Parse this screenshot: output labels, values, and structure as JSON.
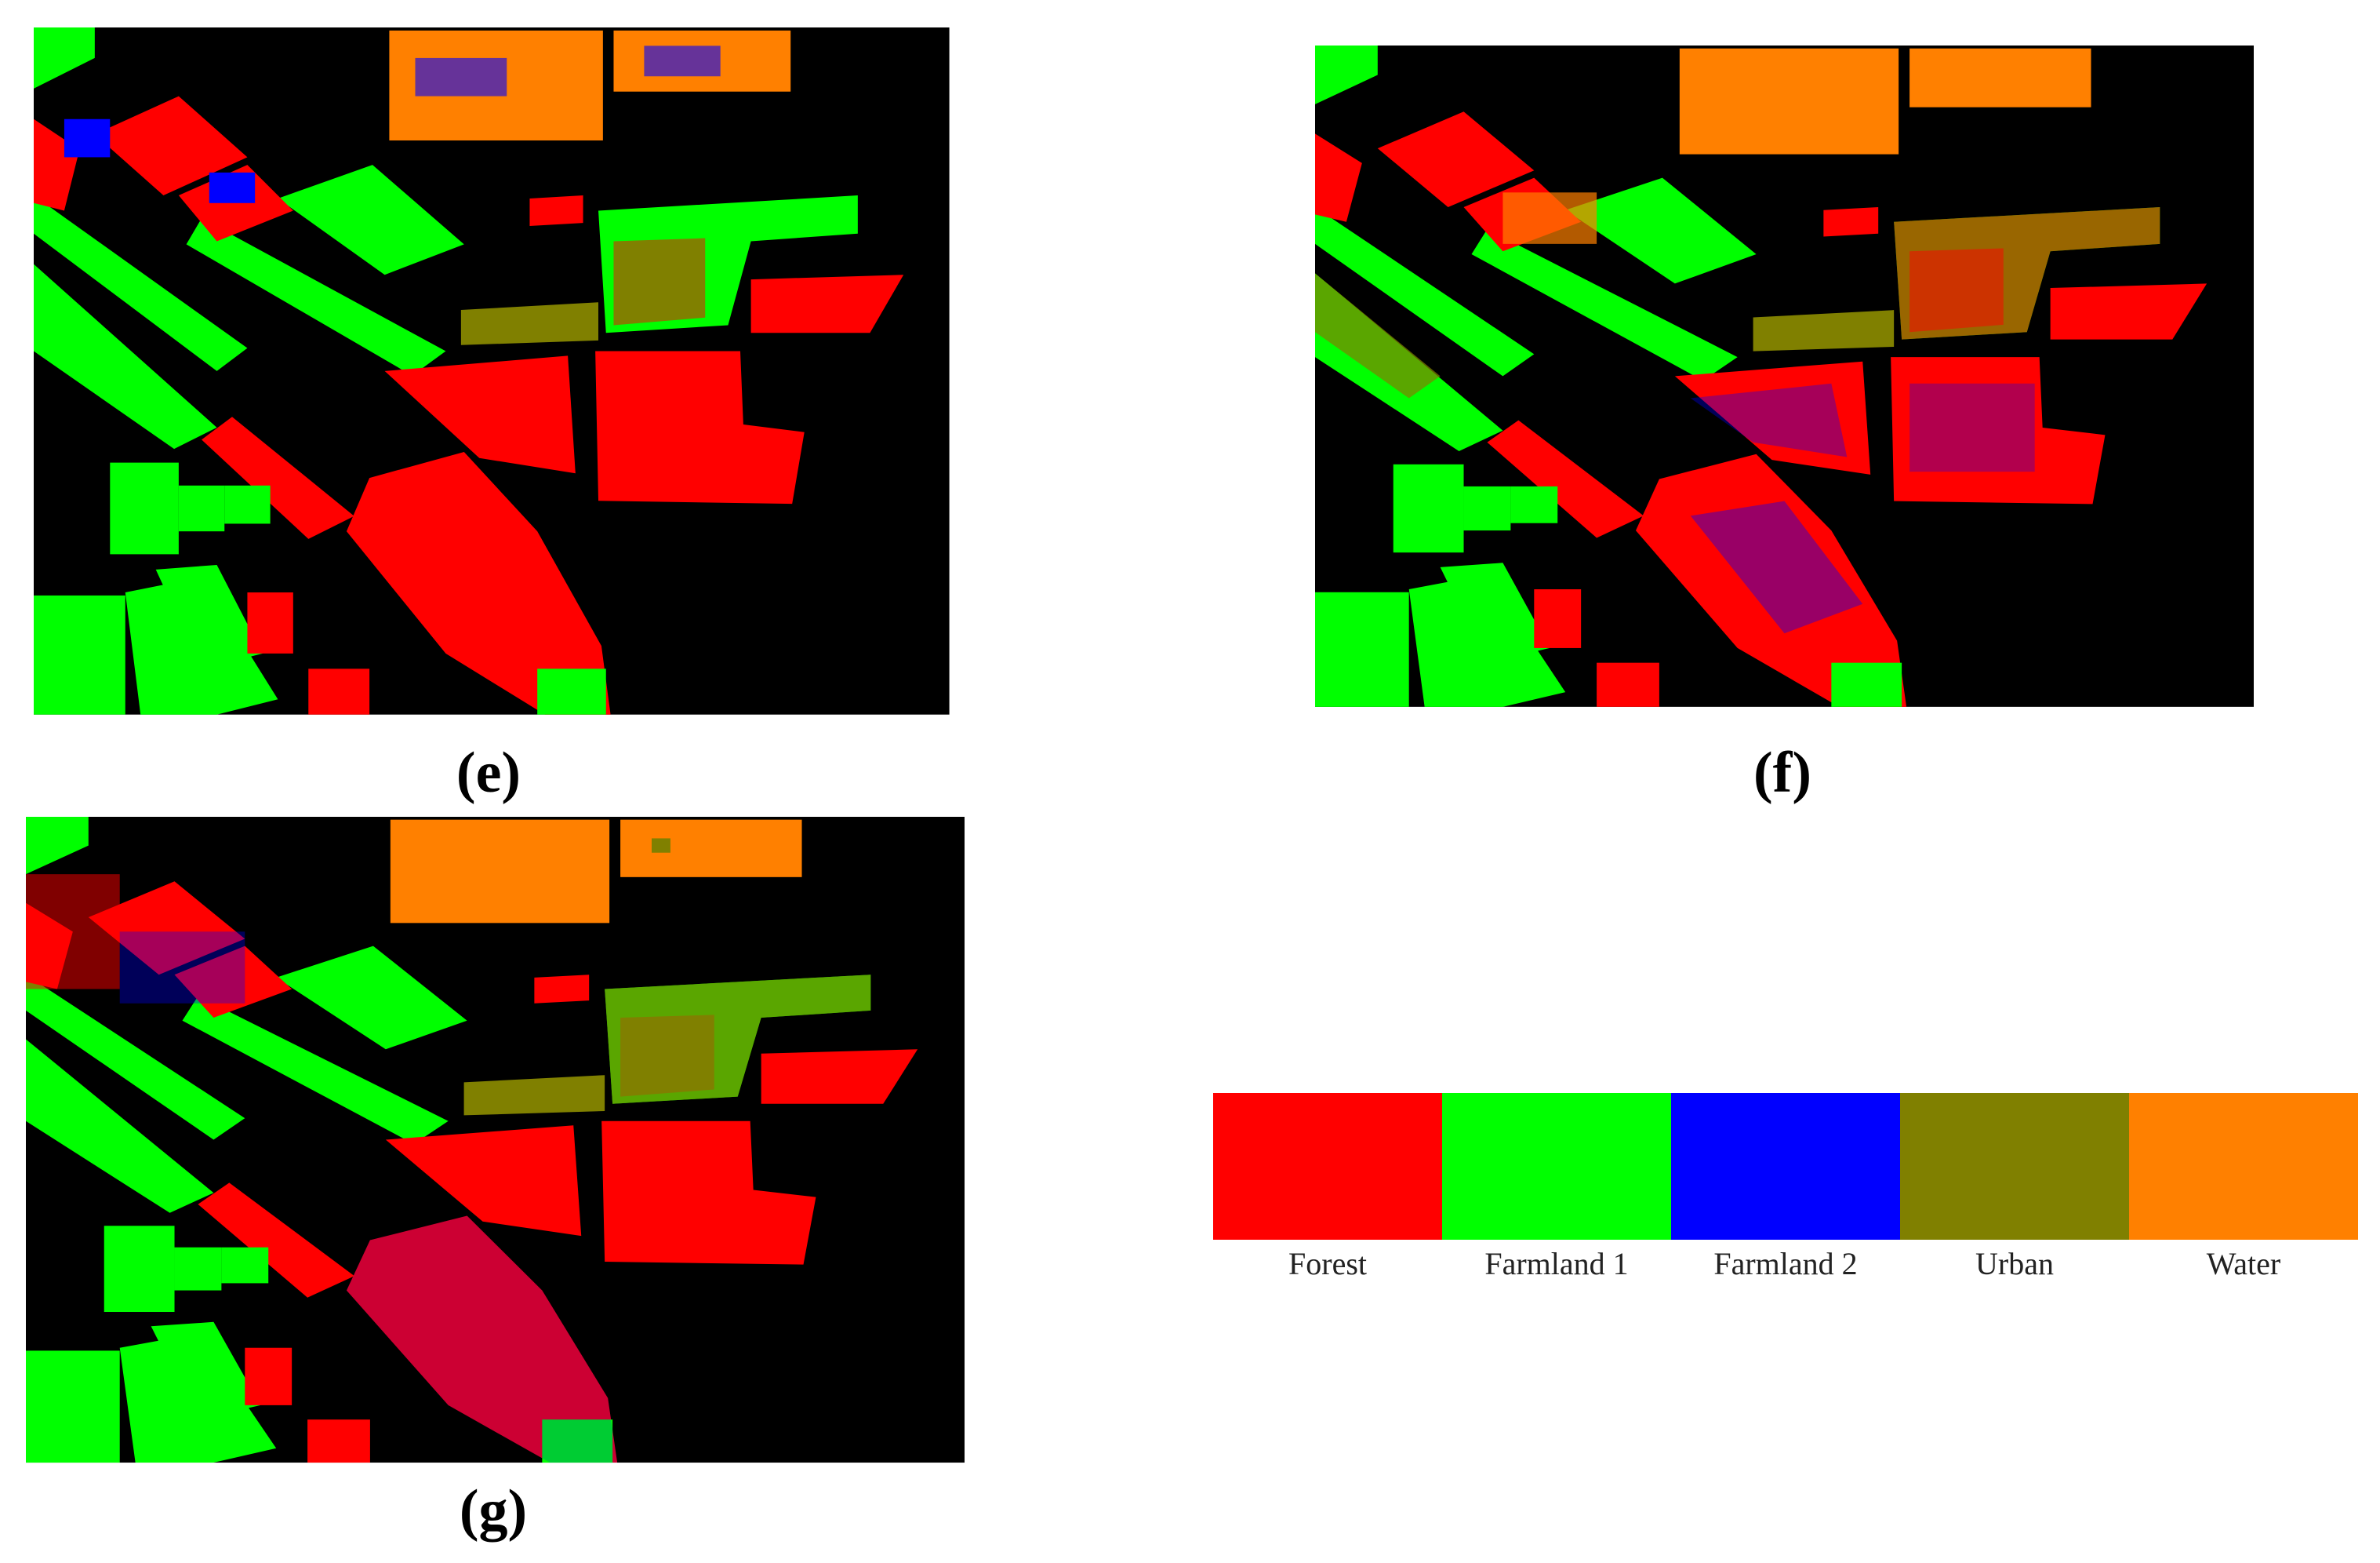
{
  "panels": [
    {
      "label": "(e)"
    },
    {
      "label": "(f)"
    },
    {
      "label": "(g)"
    }
  ],
  "legend": {
    "items": [
      {
        "name": "Forest",
        "color": "#ff0000"
      },
      {
        "name": "Farmland 1",
        "color": "#00ff00"
      },
      {
        "name": "Farmland 2",
        "color": "#0000ff"
      },
      {
        "name": "Urban",
        "color": "#808000"
      },
      {
        "name": "Water",
        "color": "#ff8000"
      }
    ]
  }
}
